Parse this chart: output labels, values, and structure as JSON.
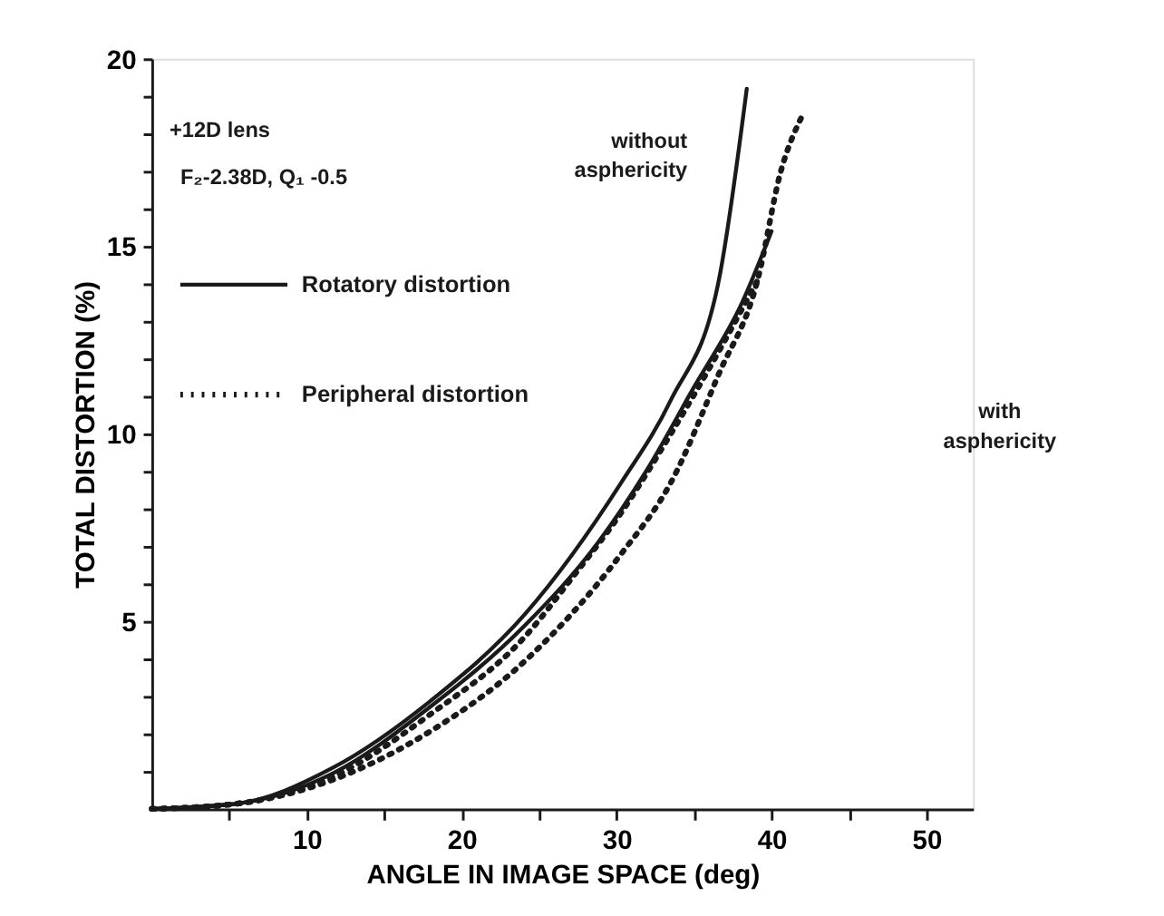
{
  "chart_data": {
    "type": "line",
    "xlabel": "ANGLE IN IMAGE SPACE (deg)",
    "ylabel": "TOTAL DISTORTION (%)",
    "xlim": [
      0,
      53
    ],
    "ylim": [
      0,
      20
    ],
    "xticks": [
      {
        "value": 5,
        "label": null
      },
      10,
      {
        "value": 15,
        "label": null
      },
      20,
      {
        "value": 25,
        "label": null
      },
      30,
      {
        "value": 35,
        "label": null
      },
      40,
      {
        "value": 45,
        "label": null
      },
      50
    ],
    "yticks": [
      {
        "value": 1,
        "label": null
      },
      {
        "value": 2,
        "label": null
      },
      {
        "value": 3,
        "label": null
      },
      {
        "value": 4,
        "label": null
      },
      5,
      {
        "value": 6,
        "label": null
      },
      {
        "value": 7,
        "label": null
      },
      {
        "value": 8,
        "label": null
      },
      {
        "value": 9,
        "label": null
      },
      10,
      {
        "value": 11,
        "label": null
      },
      {
        "value": 12,
        "label": null
      },
      {
        "value": 13,
        "label": null
      },
      {
        "value": 14,
        "label": null
      },
      15,
      {
        "value": 16,
        "label": null
      },
      {
        "value": 17,
        "label": null
      },
      {
        "value": 18,
        "label": null
      },
      {
        "value": 19,
        "label": null
      },
      20
    ],
    "grid": false,
    "legend": "top left",
    "marker": "none",
    "series": [
      {
        "name": "Rotatory distortion",
        "color": "#1a1a1a",
        "line_style": "solid",
        "x": [
          0,
          5.5,
          11.7,
          17.9,
          24.1,
          30.3,
          33.5,
          36.6,
          38.4
        ],
        "values": [
          0,
          0.14,
          1.1,
          2.85,
          5.2,
          8.7,
          10.9,
          14.1,
          19.2
        ]
      },
      {
        "name": "Peripheral distortion",
        "color": "#1a1a1a",
        "line_style": "dotted",
        "x": [
          0,
          5.5,
          11.7,
          17.9,
          24.1,
          30.3,
          33.5,
          36.6,
          39.1,
          40.6,
          42.0
        ],
        "values": [
          0,
          0.14,
          0.78,
          2.05,
          3.95,
          6.8,
          8.7,
          11.6,
          14.1,
          17.0,
          18.5
        ]
      },
      {
        "color": "#1a1a1a",
        "line_style": "solid",
        "x": [
          0,
          5.5,
          11.7,
          17.9,
          24.1,
          28.8,
          31.9,
          35.0,
          38.1,
          40.0
        ],
        "values": [
          0,
          0.14,
          0.95,
          2.7,
          4.9,
          7.1,
          9.0,
          11.25,
          13.5,
          15.4
        ]
      },
      {
        "color": "#1a1a1a",
        "line_style": "dotted",
        "x": [
          0,
          5.5,
          11.7,
          17.9,
          24.1,
          27.2,
          30.3,
          33.5,
          36.6,
          39.1
        ],
        "values": [
          0,
          0.14,
          0.86,
          2.5,
          4.6,
          6.2,
          7.9,
          10.0,
          12.2,
          14.1
        ]
      }
    ],
    "annotations": [
      "+12D lens",
      "F₂-2.38D, Q₁ -0.5",
      "without",
      "asphericity",
      "with",
      "asphericity"
    ]
  }
}
